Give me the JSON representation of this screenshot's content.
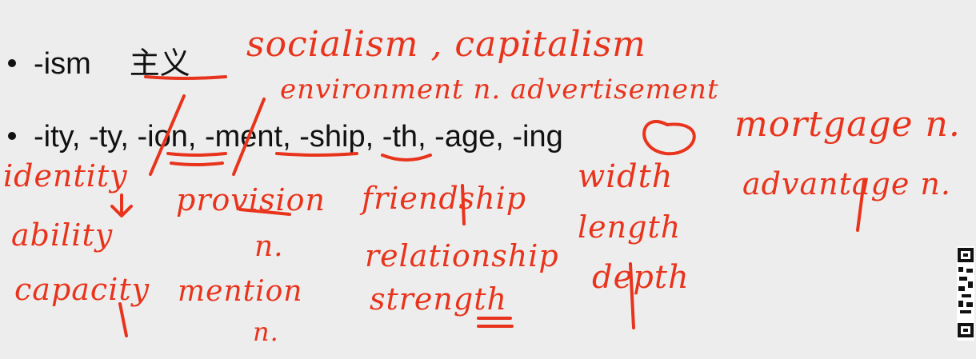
{
  "slide": {
    "line1": {
      "suffix": "-ism",
      "meaning": "主义"
    },
    "line2": {
      "parts": [
        "-ity, -ty, ",
        "-ion",
        ", ",
        "-ment",
        ", -",
        "ship",
        ", -th, -age, -",
        "ing"
      ]
    }
  },
  "annotations": {
    "ism_examples": "socialism , capitalism",
    "ment_examples": "environment n. advertisement",
    "ing_example": "mortgage n.",
    "ity_examples": [
      "identity",
      "ability",
      "capacity"
    ],
    "ion_examples": [
      "provision",
      "n.",
      "mention",
      "n."
    ],
    "ship_examples": [
      "friendship",
      "relationship",
      "strength"
    ],
    "th_examples": [
      "width",
      "length",
      "depth"
    ],
    "age_example": "advantage n."
  },
  "colors": {
    "ink": "#e8341c",
    "text": "#111111",
    "background": "#ededed"
  }
}
